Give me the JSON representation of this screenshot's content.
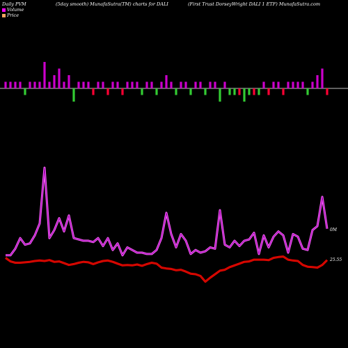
{
  "header": {
    "left": "Daily PVM",
    "middle": "(5day smooth) MunafaSutra(TM) charts for DALI",
    "right": "(First Trust DorseyWright DALI 1 ETF) MunafaSutra.com"
  },
  "legend": [
    {
      "label": "Volume",
      "color": "#ff00ff"
    },
    {
      "label": "Price",
      "color": "#f4a460"
    }
  ],
  "end_labels": {
    "volume": "0M",
    "price": "25.55"
  },
  "colors": {
    "volume_line": "#ff66ff",
    "volume_line_core": "#9900aa",
    "price_line": "#ff0000",
    "price_line_core": "#aa1100",
    "bar_pos": "#cc00cc",
    "bar_neg_red": "#ff0033",
    "bar_neg_green": "#33cc33",
    "baseline": "#ffffff"
  },
  "chart_data": {
    "type": "line",
    "x": [
      1,
      2,
      3,
      4,
      5,
      6,
      7,
      8,
      9,
      10,
      11,
      12,
      13,
      14,
      15,
      16,
      17,
      18,
      19,
      20,
      21,
      22,
      23,
      24,
      25,
      26,
      27,
      28,
      29,
      30,
      31,
      32,
      33,
      34,
      35,
      36,
      37,
      38,
      39,
      40,
      41,
      42,
      43,
      44,
      45,
      46,
      47,
      48,
      49,
      50,
      51,
      52,
      53,
      54,
      55,
      56,
      57,
      58,
      59,
      60,
      61,
      62,
      63,
      64,
      65,
      66,
      67
    ],
    "series": [
      {
        "name": "Volume",
        "values": [
          9,
          9,
          14,
          22,
          17,
          18,
          24,
          33,
          75,
          22,
          28,
          37,
          27,
          39,
          22,
          21,
          20,
          20,
          19,
          22,
          16,
          22,
          13,
          18,
          9,
          15,
          13,
          11,
          11,
          10,
          10,
          13,
          22,
          41,
          25,
          15,
          25,
          20,
          10,
          13,
          11,
          12,
          15,
          14,
          43,
          17,
          15,
          20,
          16,
          20,
          21,
          26,
          10,
          24,
          15,
          23,
          27,
          24,
          11,
          25,
          23,
          14,
          13,
          28,
          31,
          53,
          29
        ]
      },
      {
        "name": "Price",
        "values": [
          25.8,
          25.4,
          25.25,
          25.25,
          25.3,
          25.35,
          25.45,
          25.5,
          25.45,
          25.55,
          25.35,
          25.4,
          25.2,
          25.0,
          25.1,
          25.25,
          25.35,
          25.3,
          25.1,
          25.3,
          25.45,
          25.5,
          25.35,
          25.15,
          24.95,
          25.0,
          24.95,
          25.05,
          24.9,
          25.1,
          25.25,
          25.15,
          24.7,
          24.6,
          24.55,
          24.4,
          24.45,
          24.25,
          24.0,
          23.95,
          23.75,
          23.1,
          23.55,
          23.95,
          24.35,
          24.45,
          24.75,
          24.95,
          25.15,
          25.35,
          25.4,
          25.6,
          25.6,
          25.6,
          25.55,
          25.8,
          25.9,
          25.95,
          25.6,
          25.5,
          25.45,
          25.0,
          24.8,
          24.75,
          24.7,
          25.0,
          25.55
        ]
      },
      {
        "name": "Daily PVM",
        "values": [
          1,
          1,
          1,
          1,
          -1,
          1,
          1,
          1,
          4,
          1,
          2,
          3,
          1,
          2,
          -2,
          1,
          1,
          1,
          -1,
          1,
          1,
          -1,
          1,
          1,
          -1,
          1,
          1,
          1,
          -1,
          1,
          1,
          -1,
          1,
          2,
          1,
          -1,
          1,
          1,
          -1,
          1,
          1,
          -1,
          1,
          1,
          -2,
          1,
          -1,
          -1,
          -1,
          -2,
          -1,
          -1,
          -1,
          1,
          -1,
          1,
          1,
          -1,
          1,
          1,
          1,
          1,
          -1,
          1,
          2,
          3,
          -1
        ]
      }
    ]
  }
}
